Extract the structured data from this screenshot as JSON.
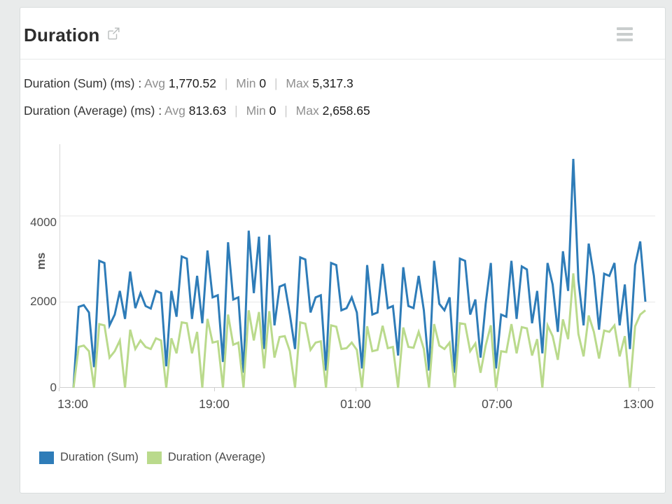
{
  "header": {
    "title": "Duration"
  },
  "stats": [
    {
      "label": "Duration (Sum) (ms) :",
      "avg_key": "Avg",
      "avg": "1,770.52",
      "sep": "|",
      "min_key": "Min",
      "min": "0",
      "max_key": "Max",
      "max": "5,317.3"
    },
    {
      "label": "Duration (Average) (ms) :",
      "avg_key": "Avg",
      "avg": "813.63",
      "sep": "|",
      "min_key": "Min",
      "min": "0",
      "max_key": "Max",
      "max": "2,658.65"
    }
  ],
  "legend": [
    {
      "label": "Duration (Sum)",
      "color": "#2e7cb8"
    },
    {
      "label": "Duration (Average)",
      "color": "#bada8c"
    }
  ],
  "colors": {
    "page_background": "#e9ebeb",
    "card_background": "#ffffff",
    "series_sum": "#2e7cb8",
    "series_average": "#bada8c",
    "grid": "#e8e8e8",
    "axis": "#cfcfcf"
  },
  "chart_data": {
    "type": "line",
    "title": "Duration",
    "xlabel": "",
    "ylabel": "ms",
    "x_tick_labels": [
      "13:00",
      "19:00",
      "01:00",
      "07:00",
      "13:00"
    ],
    "y_tick_labels": [
      "0",
      "2000",
      "4000"
    ],
    "y_ticks": [
      0,
      2000,
      4000
    ],
    "ylim": [
      0,
      5660
    ],
    "grid": "horizontal",
    "legend_position": "bottom-left",
    "x_span_hours": 24,
    "series": [
      {
        "name": "Duration (Sum)",
        "unit": "ms",
        "color": "#2e7cb8",
        "avg": 1770.52,
        "min": 0,
        "max": 5317.3,
        "values": [
          0,
          1880,
          1920,
          1750,
          480,
          2950,
          2900,
          1450,
          1700,
          2250,
          1600,
          2700,
          1850,
          2200,
          1900,
          1840,
          2250,
          2200,
          500,
          2250,
          1650,
          3050,
          3000,
          1600,
          2600,
          1500,
          3190,
          2100,
          2150,
          600,
          3380,
          2050,
          2100,
          350,
          3650,
          2200,
          3510,
          900,
          3550,
          1450,
          2350,
          2400,
          1700,
          900,
          3030,
          2980,
          1750,
          2100,
          2150,
          400,
          2900,
          2850,
          1800,
          1850,
          2100,
          1750,
          450,
          2850,
          1700,
          1750,
          2880,
          1850,
          1900,
          750,
          2800,
          1900,
          1850,
          2600,
          1800,
          400,
          2950,
          1950,
          1800,
          2100,
          350,
          3000,
          2950,
          1700,
          2050,
          700,
          1950,
          2900,
          450,
          1700,
          1650,
          2950,
          1600,
          2820,
          2750,
          1500,
          2250,
          800,
          2900,
          2400,
          1300,
          3170,
          2250,
          5317.3,
          2500,
          1450,
          3350,
          2600,
          1350,
          2650,
          2600,
          2900,
          1450,
          2400,
          900,
          2850,
          3400,
          2000
        ]
      },
      {
        "name": "Duration (Average)",
        "unit": "ms",
        "color": "#bada8c",
        "avg": 813.63,
        "min": 0,
        "max": 2658.65,
        "values": [
          0,
          950,
          980,
          850,
          0,
          1480,
          1450,
          700,
          850,
          1100,
          0,
          1350,
          900,
          1100,
          950,
          900,
          1150,
          1100,
          0,
          1150,
          800,
          1520,
          1500,
          800,
          1300,
          0,
          1600,
          1050,
          1080,
          0,
          1700,
          1000,
          1050,
          0,
          1800,
          1100,
          1760,
          450,
          1780,
          700,
          1180,
          1200,
          850,
          0,
          1520,
          1490,
          880,
          1050,
          1080,
          0,
          1450,
          1420,
          900,
          920,
          1050,
          880,
          0,
          1430,
          850,
          880,
          1440,
          920,
          950,
          0,
          1400,
          950,
          930,
          1300,
          900,
          0,
          1480,
          980,
          900,
          1050,
          0,
          1500,
          1480,
          850,
          1030,
          350,
          980,
          1450,
          0,
          850,
          830,
          1480,
          800,
          1410,
          1380,
          750,
          1130,
          0,
          1450,
          1200,
          650,
          1590,
          1130,
          2658.65,
          1250,
          730,
          1680,
          1300,
          680,
          1330,
          1300,
          1450,
          730,
          1200,
          0,
          1430,
          1700,
          1800
        ]
      }
    ]
  }
}
